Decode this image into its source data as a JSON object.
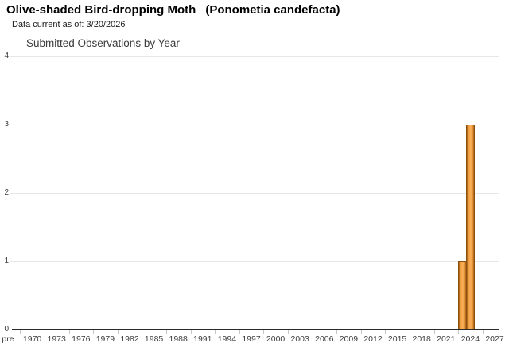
{
  "header": {
    "common_name": "Olive-shaded Bird-dropping Moth",
    "scientific_name": "(Ponometia candefacta)",
    "data_current": "Data current as of: 3/20/2026"
  },
  "chart_data": {
    "type": "bar",
    "title": "Submitted Observations by Year",
    "xlabel": "",
    "ylabel": "",
    "ylim": [
      0,
      4
    ],
    "y_ticks": [
      0,
      1,
      2,
      3,
      4
    ],
    "x_tick_labels": [
      "pre",
      "1970",
      "1973",
      "1976",
      "1979",
      "1982",
      "1985",
      "1988",
      "1991",
      "1994",
      "1997",
      "2000",
      "2003",
      "2006",
      "2009",
      "2012",
      "2015",
      "2018",
      "2021",
      "2024",
      "2027"
    ],
    "grid": "horizontal gridlines on integer counts",
    "legend": "none",
    "series": [
      {
        "name": "Submitted Observations",
        "points": [
          {
            "year": 2023,
            "value": 1
          },
          {
            "year": 2024,
            "value": 3
          }
        ]
      }
    ],
    "colors": {
      "bar_light": "#f7ab55",
      "bar_mid": "#e0902f",
      "bar_dark": "#9c5812",
      "bar_border": "#8a4e0e",
      "grid": "#e7e7e7",
      "axis": "#2b2b2b",
      "tickc": "#c6c6c6",
      "text": "#3b3b3b"
    }
  }
}
